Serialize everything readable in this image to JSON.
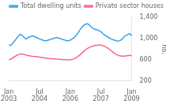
{
  "chart_data": {
    "type": "line",
    "categories": [
      [
        "Jan",
        "2003"
      ],
      null,
      null,
      null,
      null,
      null,
      null,
      null,
      null,
      null,
      null,
      null,
      null,
      null,
      null,
      null,
      null,
      null,
      [
        "Jul",
        "2004"
      ],
      null,
      null,
      null,
      null,
      null,
      null,
      null,
      null,
      null,
      null,
      null,
      null,
      null,
      null,
      null,
      null,
      null,
      [
        "Jan",
        "2006"
      ],
      null,
      null,
      null,
      null,
      null,
      null,
      null,
      null,
      null,
      null,
      null,
      null,
      null,
      null,
      null,
      null,
      null,
      [
        "Jul",
        "2007"
      ],
      null,
      null,
      null,
      null,
      null,
      null,
      null,
      null,
      null,
      null,
      null,
      null,
      null,
      null,
      null,
      null,
      null,
      [
        "Jan",
        "2009"
      ]
    ],
    "series": [
      {
        "name": "Total dwelling units",
        "values": [
          880,
          870,
          900,
          940,
          980,
          1020,
          1060,
          1080,
          1050,
          1020,
          990,
          1010,
          1030,
          1040,
          1050,
          1040,
          1020,
          1010,
          990,
          980,
          970,
          960,
          960,
          970,
          980,
          990,
          1000,
          1010,
          1020,
          1010,
          1000,
          990,
          980,
          970,
          960,
          960,
          970,
          990,
          1010,
          1040,
          1080,
          1130,
          1180,
          1220,
          1250,
          1270,
          1280,
          1260,
          1230,
          1200,
          1180,
          1170,
          1160,
          1150,
          1130,
          1100,
          1070,
          1050,
          1030,
          1010,
          990,
          980,
          970,
          960,
          950,
          960,
          980,
          1010,
          1050,
          1060,
          1080,
          1090,
          1050
        ]
      },
      {
        "name": "Private sector houses",
        "values": [
          600,
          610,
          630,
          650,
          670,
          690,
          700,
          710,
          710,
          700,
          690,
          680,
          675,
          670,
          665,
          660,
          660,
          655,
          650,
          645,
          640,
          635,
          630,
          625,
          620,
          620,
          618,
          615,
          612,
          610,
          608,
          605,
          602,
          600,
          598,
          598,
          600,
          605,
          615,
          630,
          650,
          675,
          700,
          730,
          760,
          790,
          810,
          830,
          845,
          855,
          865,
          870,
          875,
          877,
          875,
          868,
          855,
          838,
          818,
          795,
          770,
          745,
          720,
          700,
          685,
          675,
          670,
          668,
          670,
          675,
          680,
          685,
          680
        ]
      }
    ],
    "ylabel": "no.",
    "ylim": [
      200,
      1400
    ],
    "yticks": [
      200,
      600,
      1000,
      1400
    ],
    "grid": false,
    "legend": "top"
  }
}
